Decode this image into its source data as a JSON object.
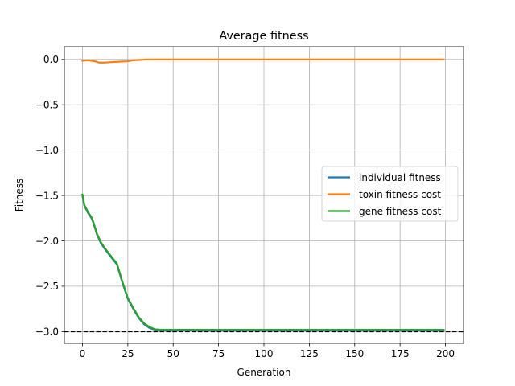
{
  "chart_data": {
    "type": "line",
    "title": "Average fitness",
    "xlabel": "Generation",
    "ylabel": "Fitness",
    "xlim": [
      -9.95,
      209.95
    ],
    "ylim": [
      -3.13,
      0.14
    ],
    "xticks": [
      0,
      25,
      50,
      75,
      100,
      125,
      150,
      175,
      200
    ],
    "yticks": [
      0.0,
      -0.5,
      -1.0,
      -1.5,
      -2.0,
      -2.5,
      -3.0
    ],
    "ytick_labels": [
      "0.0",
      "−0.5",
      "−1.0",
      "−1.5",
      "−2.0",
      "−2.5",
      "−3.0"
    ],
    "grid": true,
    "legend_position": "center-right",
    "reference_line": {
      "y": -3.0,
      "style": "dashed",
      "color": "#000000"
    },
    "series": [
      {
        "name": "individual fitness",
        "color": "#1f77b4",
        "x": [
          0,
          1,
          3,
          5,
          6,
          8,
          10,
          12,
          15,
          17,
          19,
          22,
          25,
          28,
          31,
          34,
          37,
          40,
          43,
          50,
          60,
          80,
          100,
          120,
          140,
          160,
          180,
          199
        ],
        "y": [
          -1.5,
          -1.61,
          -1.69,
          -1.75,
          -1.8,
          -1.93,
          -2.02,
          -2.08,
          -2.16,
          -2.21,
          -2.26,
          -2.46,
          -2.64,
          -2.75,
          -2.85,
          -2.92,
          -2.96,
          -2.98,
          -2.985,
          -2.985,
          -2.985,
          -2.985,
          -2.985,
          -2.985,
          -2.985,
          -2.985,
          -2.985,
          -2.985
        ]
      },
      {
        "name": "toxin fitness cost",
        "color": "#ff7f0e",
        "x": [
          0,
          3,
          5,
          7,
          9,
          12,
          16,
          20,
          25,
          28,
          32,
          35,
          40,
          60,
          100,
          150,
          199
        ],
        "y": [
          -0.015,
          -0.01,
          -0.015,
          -0.02,
          -0.035,
          -0.035,
          -0.03,
          -0.025,
          -0.02,
          -0.01,
          -0.005,
          0.0,
          0.0,
          0.0,
          0.0,
          0.0,
          0.0
        ]
      },
      {
        "name": "gene fitness cost",
        "color": "#2ca02c",
        "x": [
          0,
          1,
          3,
          5,
          6,
          8,
          10,
          12,
          15,
          17,
          19,
          22,
          25,
          28,
          31,
          34,
          37,
          40,
          43,
          50,
          60,
          80,
          100,
          120,
          140,
          160,
          180,
          199
        ],
        "y": [
          -1.49,
          -1.6,
          -1.68,
          -1.74,
          -1.79,
          -1.92,
          -2.01,
          -2.07,
          -2.15,
          -2.2,
          -2.25,
          -2.45,
          -2.63,
          -2.74,
          -2.84,
          -2.91,
          -2.95,
          -2.975,
          -2.98,
          -2.98,
          -2.98,
          -2.98,
          -2.98,
          -2.98,
          -2.98,
          -2.98,
          -2.98,
          -2.98
        ]
      }
    ]
  }
}
